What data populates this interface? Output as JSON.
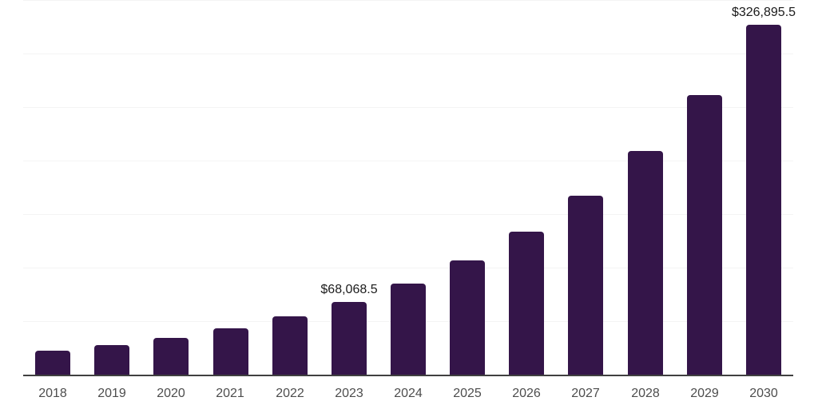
{
  "chart_data": {
    "type": "bar",
    "title": "",
    "xlabel": "",
    "ylabel": "",
    "categories": [
      "2018",
      "2019",
      "2020",
      "2021",
      "2022",
      "2023",
      "2024",
      "2025",
      "2026",
      "2027",
      "2028",
      "2029",
      "2030"
    ],
    "values": [
      22200,
      27700,
      34700,
      43400,
      54400,
      68068.5,
      85200,
      106600,
      133400,
      166900,
      208800,
      261300,
      326895.5
    ],
    "annotations": [
      {
        "category": "2023",
        "label": "$68,068.5"
      },
      {
        "category": "2030",
        "label": "$326,895.5"
      }
    ],
    "ylim": [
      0,
      350000
    ],
    "gridline_interval": 50000,
    "grid": "horizontal",
    "legend_position": "none",
    "y_tick_labels_visible": false,
    "colors": {
      "bar": "#341549",
      "gridline": "#f4f4f4",
      "axis_line": "#404040",
      "tick_label": "#4d4d4d",
      "data_label": "#1b1b1b",
      "background": "#ffffff"
    }
  }
}
